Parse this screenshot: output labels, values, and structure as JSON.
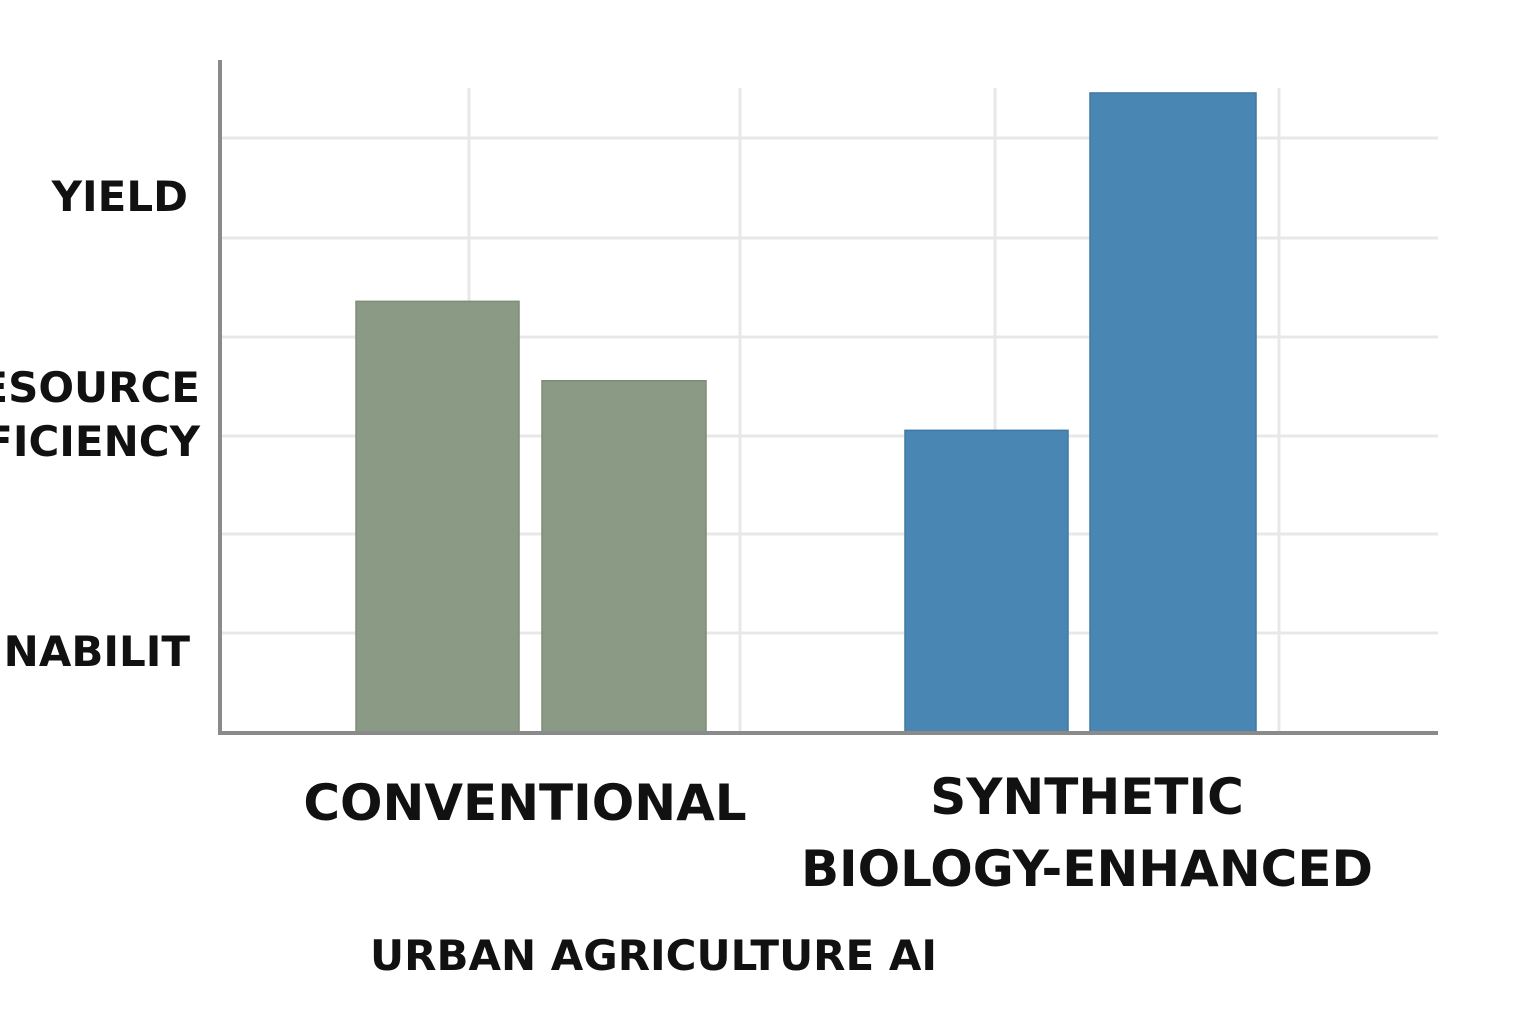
{
  "chart_data": {
    "type": "bar",
    "categories": [
      "CONVENTIONAL",
      "SYNTHETIC BIOLOGY-ENHANCED"
    ],
    "category_label_lines": [
      [
        "CONVENTIONAL"
      ],
      [
        "SYNTHETIC",
        "BIOLOGY-ENHANCED"
      ]
    ],
    "values": [
      [
        4.35,
        3.55
      ],
      [
        3.05,
        6.45
      ]
    ],
    "bar_colors": [
      "#8a9a84",
      "#8a9a84",
      "#4a86b3",
      "#4a86b3"
    ],
    "ylim": [
      0,
      6.5
    ],
    "y_tick_labels": [
      {
        "lines": [
          "YIELD"
        ],
        "level": 5.4
      },
      {
        "lines": [
          "ESOURCE",
          "FICIENCY"
        ],
        "level": 3.2
      },
      {
        "lines": [
          "NNABILIT"
        ],
        "level": 0.8
      }
    ],
    "xlabel": "URBAN AGRICULTURE AI",
    "grid": true,
    "colors": {
      "axis": "#8a8a8a",
      "grid": "#e8e8e8",
      "text": "#111111"
    }
  }
}
